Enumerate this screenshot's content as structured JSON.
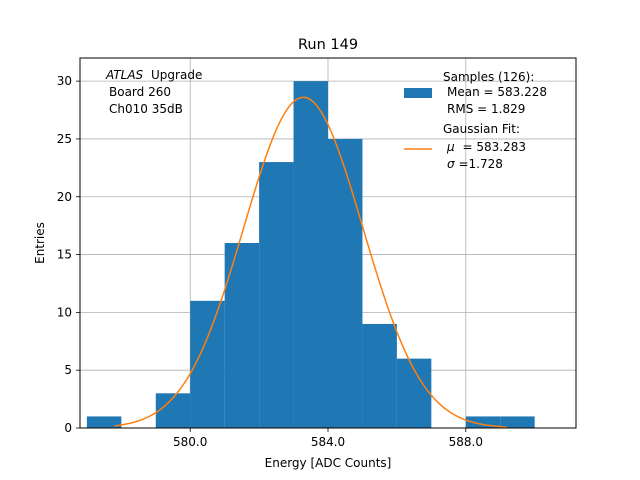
{
  "chart_data": {
    "type": "bar",
    "title": "Run 149",
    "xlabel": "Energy [ADC Counts]",
    "ylabel": "Entries",
    "xlim": [
      576.8,
      591.2
    ],
    "ylim": [
      0,
      32
    ],
    "xticks": [
      580,
      584,
      588
    ],
    "xtick_labels": [
      "580.0",
      "584.0",
      "588.0"
    ],
    "yticks": [
      0,
      5,
      10,
      15,
      20,
      25,
      30
    ],
    "ytick_labels": [
      "0",
      "5",
      "10",
      "15",
      "20",
      "25",
      "30"
    ],
    "grid": true,
    "bin_width": 1,
    "bins": [
      {
        "left": 577,
        "count": 1
      },
      {
        "left": 579,
        "count": 3
      },
      {
        "left": 580,
        "count": 11
      },
      {
        "left": 581,
        "count": 16
      },
      {
        "left": 582,
        "count": 23
      },
      {
        "left": 583,
        "count": 30
      },
      {
        "left": 584,
        "count": 25
      },
      {
        "left": 585,
        "count": 9
      },
      {
        "left": 586,
        "count": 6
      },
      {
        "left": 588,
        "count": 1
      },
      {
        "left": 589,
        "count": 1
      }
    ],
    "fit": {
      "name": "Gaussian Fit",
      "mu": 583.283,
      "sigma": 1.728,
      "amplitude": 28.6,
      "range": [
        577.8,
        589.2
      ]
    },
    "bar_color": "#1f77b4",
    "fit_color": "#ff7f0e",
    "annotation_lines": [
      "Upgrade",
      "Board 260",
      "Ch010 35dB"
    ],
    "annotation_italic": "ATLAS",
    "legend": {
      "position": "top-right",
      "samples_lines": [
        "Samples (126):",
        "Mean = 583.228",
        "RMS = 1.829"
      ],
      "fit_lines": [
        "Gaussian Fit:",
        "= 583.283",
        "=1.728"
      ],
      "mu_symbol": "μ",
      "sigma_symbol": "σ"
    }
  }
}
